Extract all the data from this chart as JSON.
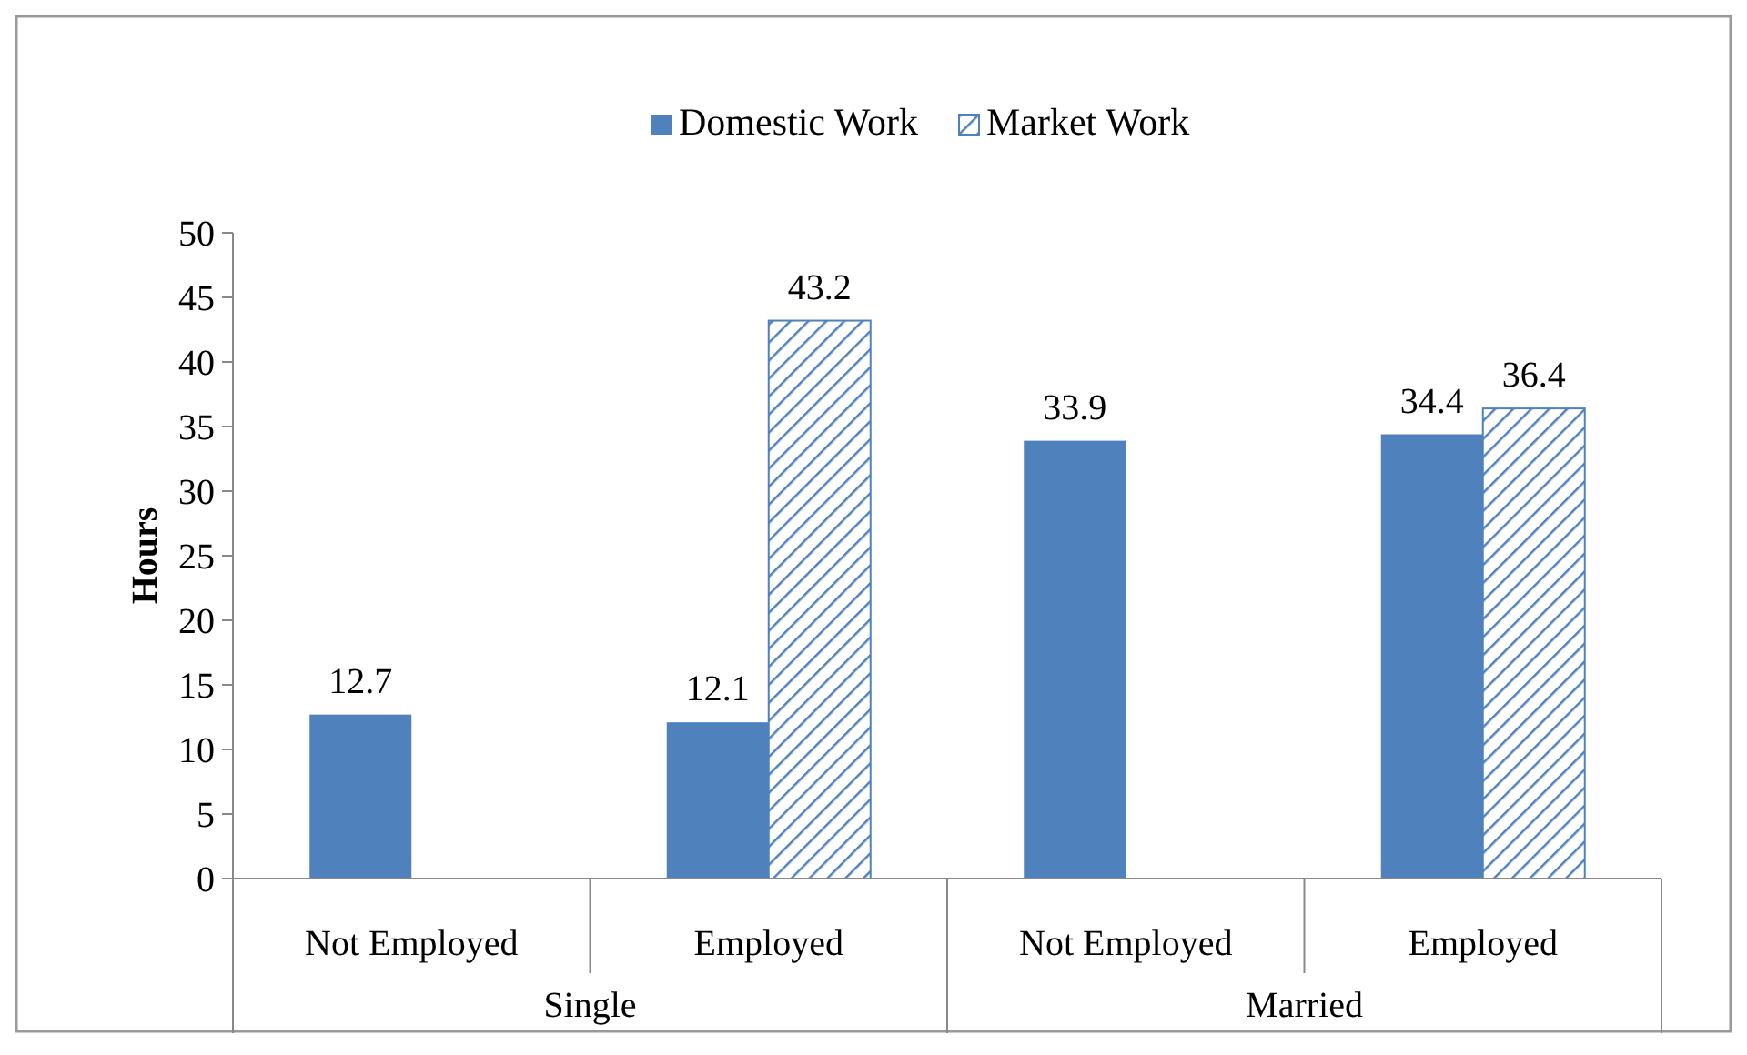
{
  "chart_data": {
    "type": "bar",
    "ylabel": "Hours",
    "categories": [
      "Not Employed",
      "Employed",
      "Not Employed",
      "Employed"
    ],
    "series": [
      {
        "name": "Domestic Work",
        "color": "#4f81bd",
        "values": [
          12.7,
          12.1,
          33.9,
          34.4
        ]
      },
      {
        "name": "Market Work",
        "color": "#4f81bd",
        "values": [
          null,
          43.2,
          null,
          36.4
        ]
      }
    ],
    "ylim": [
      0,
      50
    ],
    "yticks": [
      0,
      5,
      10,
      15,
      20,
      25,
      30,
      35,
      40,
      45,
      50
    ],
    "data_labels": true,
    "legend": "top",
    "grid": false,
    "annotations": [
      "Single",
      "Married"
    ]
  }
}
